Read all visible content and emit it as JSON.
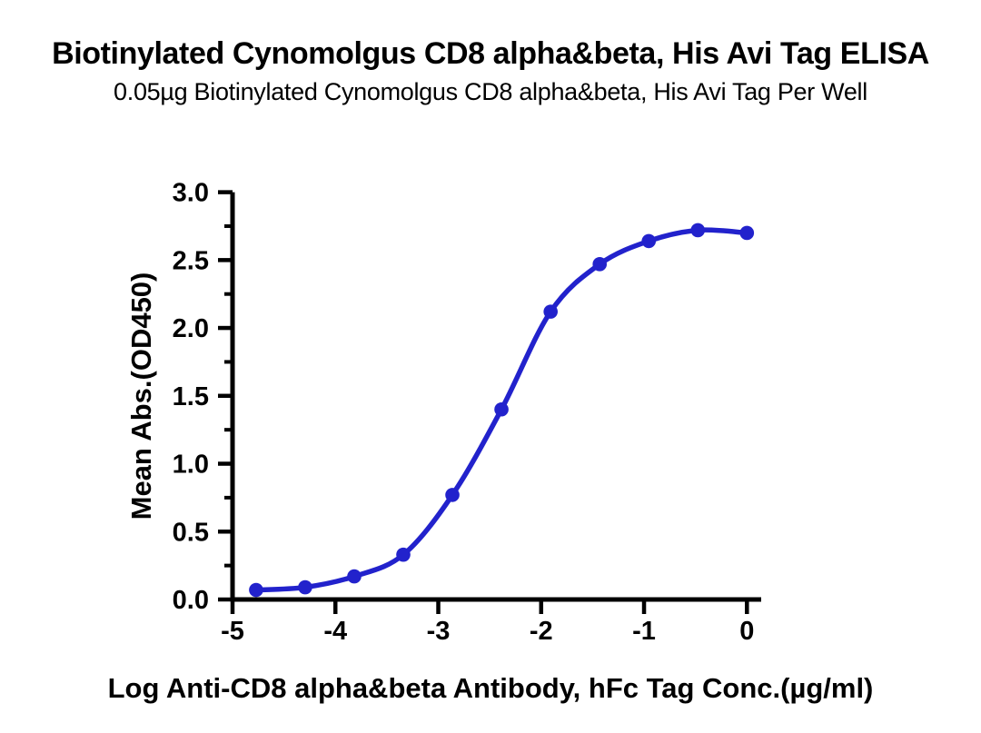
{
  "figure": {
    "background_color": "#FFFFFF",
    "text_color": "#000000",
    "axis_color": "#000000"
  },
  "chart_data": {
    "type": "line",
    "title": "Biotinylated Cynomolgus CD8 alpha&beta, His Avi Tag ELISA",
    "subtitle": "0.05µg Biotinylated Cynomolgus CD8 alpha&beta, His Avi Tag Per Well",
    "xlabel": "Log Anti-CD8 alpha&beta Antibody, hFc Tag Conc.(µg/ml)",
    "ylabel": "Mean Abs.(OD450)",
    "xlim": [
      -5,
      0
    ],
    "ylim": [
      0,
      3
    ],
    "x_ticks": [
      -5,
      -4,
      -3,
      -2,
      -1,
      0
    ],
    "x_tick_labels": [
      "-5",
      "-4",
      "-3",
      "-2",
      "-1",
      "0"
    ],
    "y_ticks": [
      0,
      0.5,
      1,
      1.5,
      2,
      2.5,
      3
    ],
    "y_tick_labels": [
      "0.0",
      "0.5",
      "1.0",
      "1.5",
      "2.0",
      "2.5",
      "3.0"
    ],
    "y_minor_tick_step": 0.25,
    "grid": false,
    "legend_position": "none",
    "series": [
      {
        "name": "Anti-CD8 alpha&beta Antibody, hFc Tag",
        "color": "#2222CC",
        "marker": "circle",
        "curve": "sigmoidal-4PL",
        "x": [
          -4.771,
          -4.294,
          -3.817,
          -3.34,
          -2.863,
          -2.386,
          -1.908,
          -1.431,
          -0.954,
          -0.477,
          0
        ],
        "y": [
          0.07,
          0.09,
          0.17,
          0.33,
          0.77,
          1.4,
          2.12,
          2.47,
          2.64,
          2.72,
          2.7
        ]
      }
    ]
  }
}
